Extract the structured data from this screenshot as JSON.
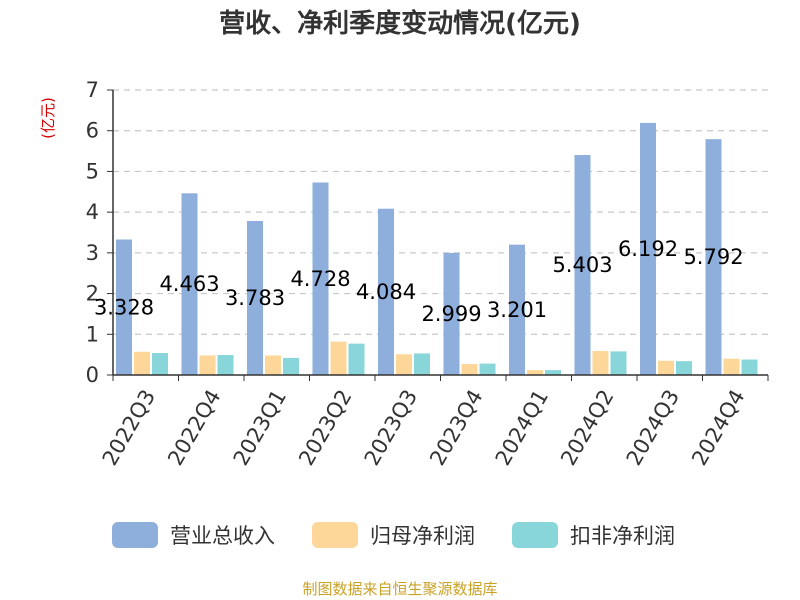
{
  "chart_data": {
    "type": "bar",
    "title": "营收、净利季度变动情况(亿元)",
    "ylabel": "(亿元)",
    "xlabel": "",
    "ylim": [
      0,
      7
    ],
    "yticks": [
      "0",
      "1",
      "2",
      "3",
      "4",
      "5",
      "6",
      "7"
    ],
    "grid": true,
    "legend_position": "bottom",
    "categories": [
      "2022Q3",
      "2022Q4",
      "2023Q1",
      "2023Q2",
      "2023Q3",
      "2023Q4",
      "2024Q1",
      "2024Q2",
      "2024Q3",
      "2024Q4"
    ],
    "series": [
      {
        "name": "营业总收入",
        "color": "#8eaedb",
        "values": [
          3.328,
          4.463,
          3.783,
          4.728,
          4.084,
          2.999,
          3.201,
          5.403,
          6.192,
          5.792
        ],
        "labels": [
          "3.328",
          "4.463",
          "3.783",
          "4.728",
          "4.084",
          "2.999",
          "3.201",
          "5.403",
          "6.192",
          "5.792"
        ]
      },
      {
        "name": "归母净利润",
        "color": "#fdd79a",
        "values": [
          0.57,
          0.48,
          0.48,
          0.82,
          0.51,
          0.27,
          0.12,
          0.59,
          0.35,
          0.4
        ]
      },
      {
        "name": "扣非净利润",
        "color": "#88d6d9",
        "values": [
          0.54,
          0.49,
          0.42,
          0.77,
          0.53,
          0.28,
          0.12,
          0.58,
          0.34,
          0.38
        ]
      }
    ],
    "source": "制图数据来自恒生聚源数据库"
  }
}
